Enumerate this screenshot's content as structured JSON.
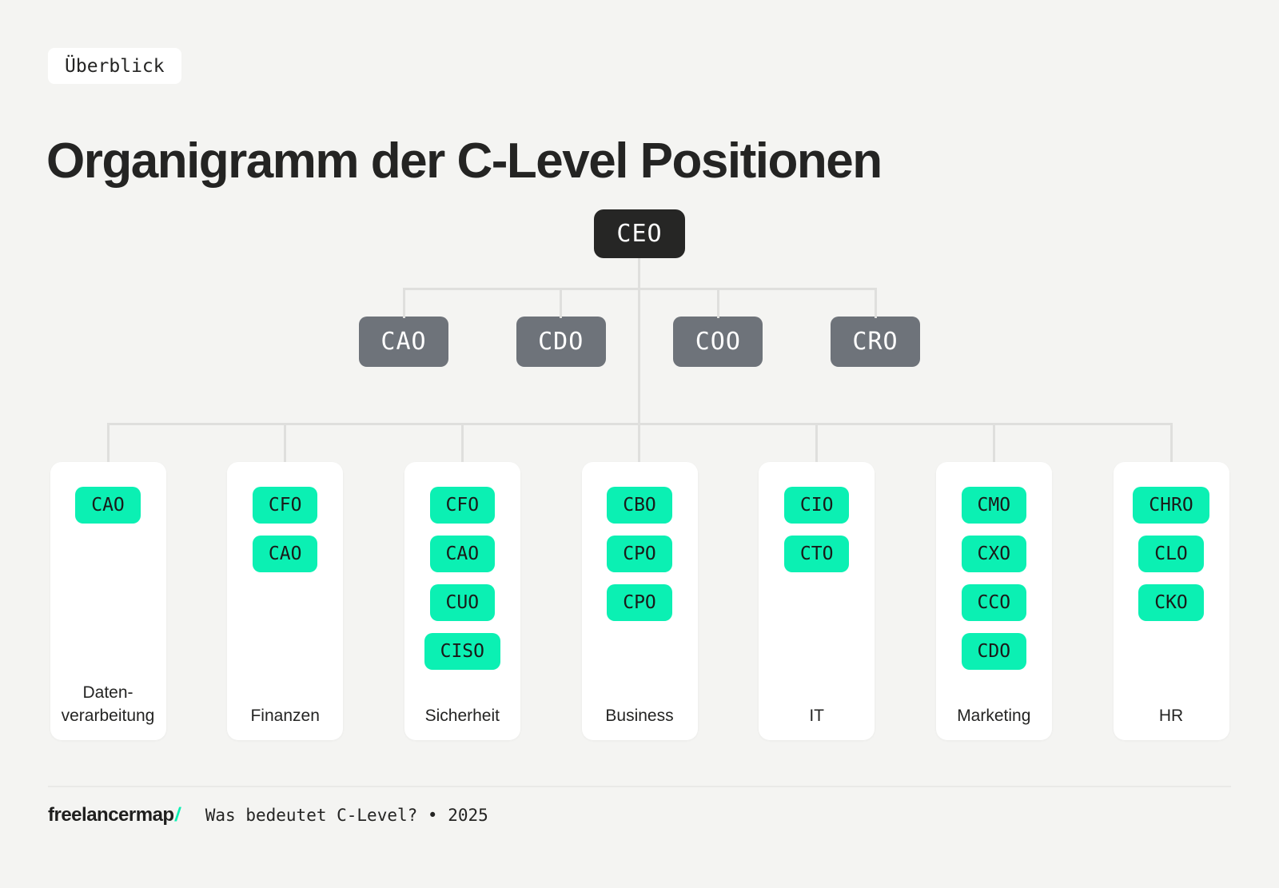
{
  "badge": {
    "label": "Überblick"
  },
  "title": "Organigramm der C-Level Positionen",
  "colors": {
    "background": "#f4f4f2",
    "card": "#ffffff",
    "root_node": "#262625",
    "level2_node": "#6e737a",
    "chip": "#0bf0b3",
    "connector": "#dfdfdd",
    "text_dark": "#242423"
  },
  "chart": {
    "root": {
      "label": "CEO"
    },
    "level2": [
      {
        "label": "CAO"
      },
      {
        "label": "CDO"
      },
      {
        "label": "COO"
      },
      {
        "label": "CRO"
      }
    ],
    "departments": [
      {
        "lines": [
          "Daten-",
          "verarbeitung"
        ],
        "roles": [
          "CAO"
        ]
      },
      {
        "lines": [
          "Finanzen"
        ],
        "roles": [
          "CFO",
          "CAO"
        ]
      },
      {
        "lines": [
          "Sicherheit"
        ],
        "roles": [
          "CFO",
          "CAO",
          "CUO",
          "CISO"
        ]
      },
      {
        "lines": [
          "Business"
        ],
        "roles": [
          "CBO",
          "CPO",
          "CPO"
        ]
      },
      {
        "lines": [
          "IT"
        ],
        "roles": [
          "CIO",
          "CTO"
        ]
      },
      {
        "lines": [
          "Marketing"
        ],
        "roles": [
          "CMO",
          "CXO",
          "CCO",
          "CDO"
        ]
      },
      {
        "lines": [
          "HR"
        ],
        "roles": [
          "CHRO",
          "CLO",
          "CKO"
        ]
      }
    ]
  },
  "footer": {
    "logo_text": "freelancermap",
    "logo_slash": "/",
    "tagline": "Was bedeutet C-Level? • 2025"
  }
}
